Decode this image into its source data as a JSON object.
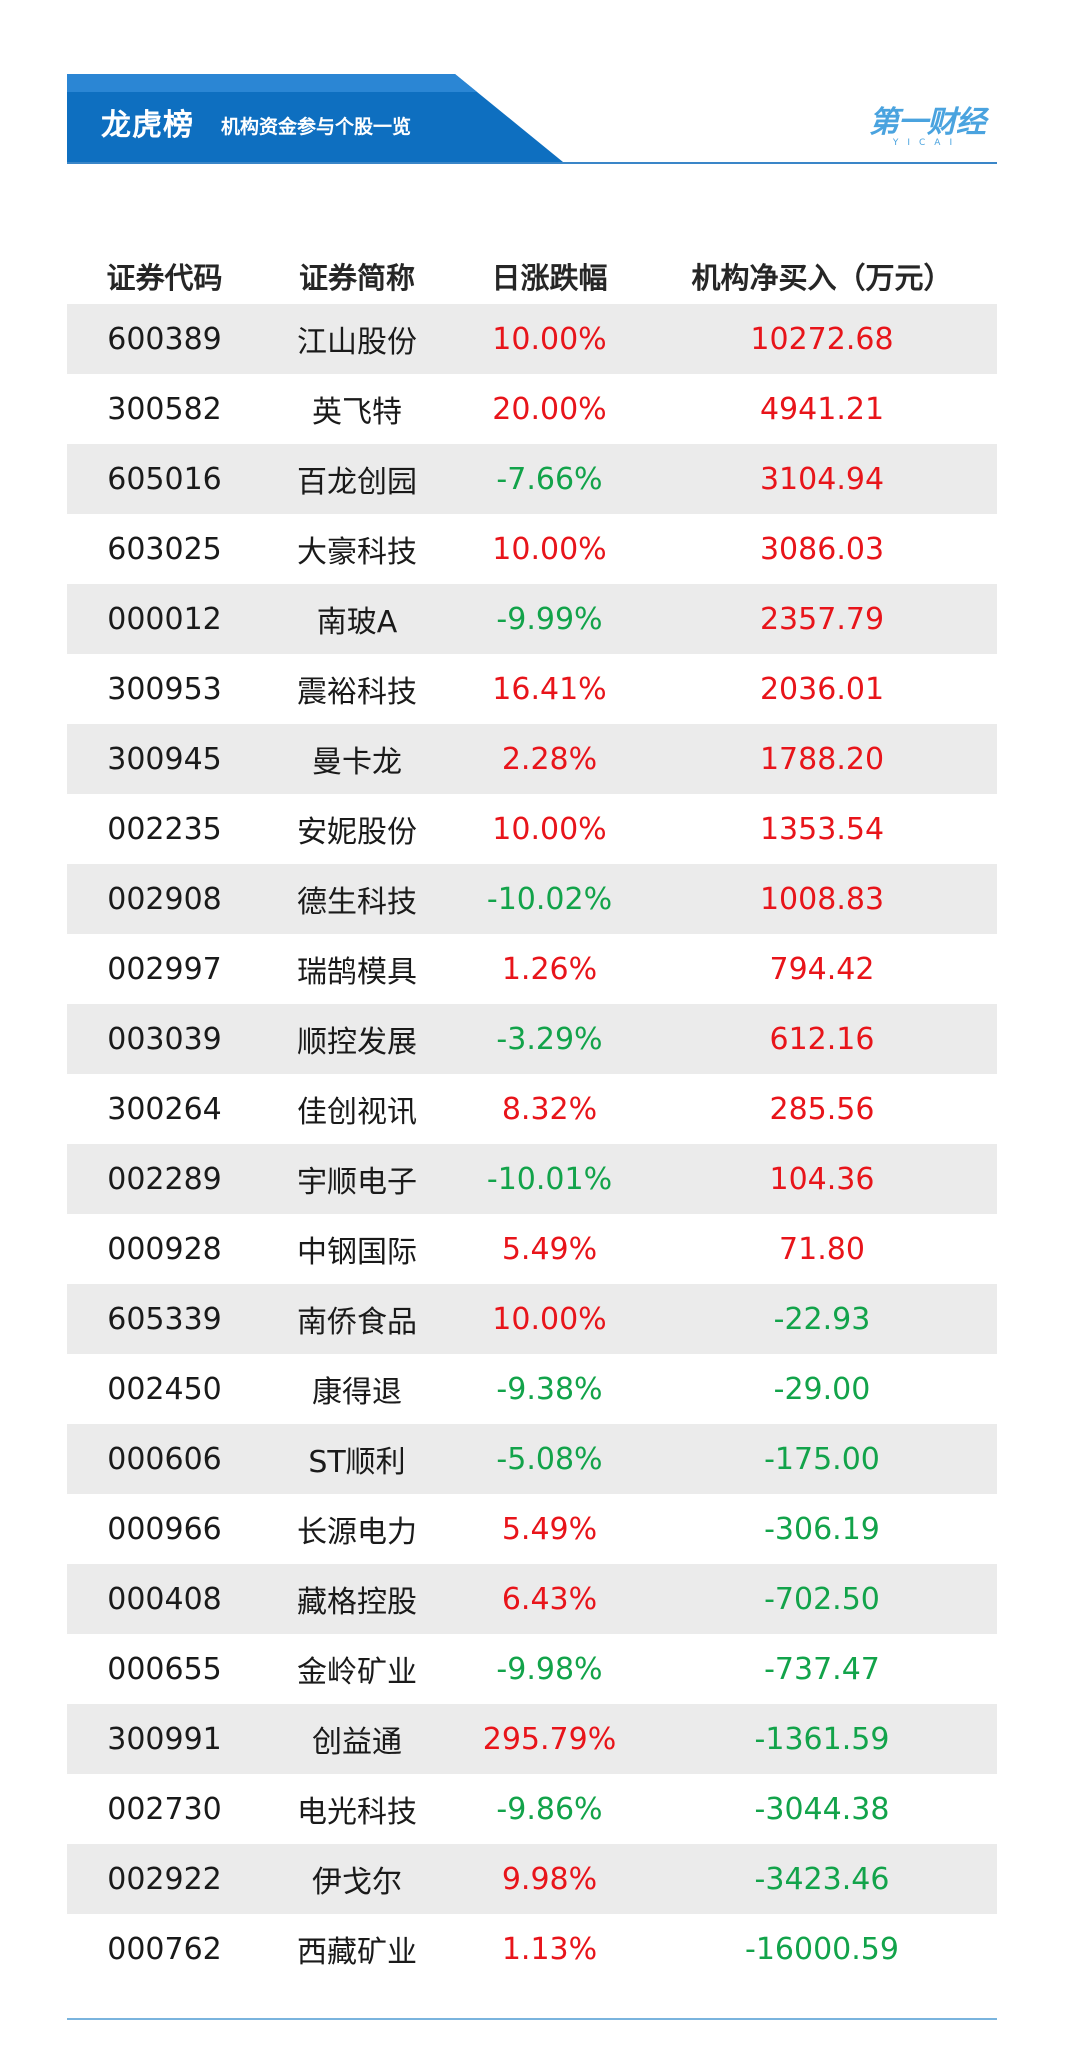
{
  "header": {
    "title": "龙虎榜",
    "subtitle": "机构资金参与个股一览",
    "logo_text": "第一财经",
    "logo_sub": "YICAI",
    "banner_color": "#0e6fc0"
  },
  "table": {
    "columns": [
      "证券代码",
      "证券简称",
      "日涨跌幅",
      "机构净买入（万元）"
    ],
    "rows": [
      {
        "code": "600389",
        "name": "江山股份",
        "change": "10.00%",
        "net_buy": "10272.68"
      },
      {
        "code": "300582",
        "name": "英飞特",
        "change": "20.00%",
        "net_buy": "4941.21"
      },
      {
        "code": "605016",
        "name": "百龙创园",
        "change": "-7.66%",
        "net_buy": "3104.94"
      },
      {
        "code": "603025",
        "name": "大豪科技",
        "change": "10.00%",
        "net_buy": "3086.03"
      },
      {
        "code": "000012",
        "name": "南玻A",
        "change": "-9.99%",
        "net_buy": "2357.79"
      },
      {
        "code": "300953",
        "name": "震裕科技",
        "change": "16.41%",
        "net_buy": "2036.01"
      },
      {
        "code": "300945",
        "name": "曼卡龙",
        "change": "2.28%",
        "net_buy": "1788.20"
      },
      {
        "code": "002235",
        "name": "安妮股份",
        "change": "10.00%",
        "net_buy": "1353.54"
      },
      {
        "code": "002908",
        "name": "德生科技",
        "change": "-10.02%",
        "net_buy": "1008.83"
      },
      {
        "code": "002997",
        "name": "瑞鹄模具",
        "change": "1.26%",
        "net_buy": "794.42"
      },
      {
        "code": "003039",
        "name": "顺控发展",
        "change": "-3.29%",
        "net_buy": "612.16"
      },
      {
        "code": "300264",
        "name": "佳创视讯",
        "change": "8.32%",
        "net_buy": "285.56"
      },
      {
        "code": "002289",
        "name": "宇顺电子",
        "change": "-10.01%",
        "net_buy": "104.36"
      },
      {
        "code": "000928",
        "name": "中钢国际",
        "change": "5.49%",
        "net_buy": "71.80"
      },
      {
        "code": "605339",
        "name": "南侨食品",
        "change": "10.00%",
        "net_buy": "-22.93"
      },
      {
        "code": "002450",
        "name": "康得退",
        "change": "-9.38%",
        "net_buy": "-29.00"
      },
      {
        "code": "000606",
        "name": "ST顺利",
        "change": "-5.08%",
        "net_buy": "-175.00"
      },
      {
        "code": "000966",
        "name": "长源电力",
        "change": "5.49%",
        "net_buy": "-306.19"
      },
      {
        "code": "000408",
        "name": "藏格控股",
        "change": "6.43%",
        "net_buy": "-702.50"
      },
      {
        "code": "000655",
        "name": "金岭矿业",
        "change": "-9.98%",
        "net_buy": "-737.47"
      },
      {
        "code": "300991",
        "name": "创益通",
        "change": "295.79%",
        "net_buy": "-1361.59"
      },
      {
        "code": "002730",
        "name": "电光科技",
        "change": "-9.86%",
        "net_buy": "-3044.38"
      },
      {
        "code": "002922",
        "name": "伊戈尔",
        "change": "9.98%",
        "net_buy": "-3423.46"
      },
      {
        "code": "000762",
        "name": "西藏矿业",
        "change": "1.13%",
        "net_buy": "-16000.59"
      }
    ]
  },
  "colors": {
    "positive": "#e8141a",
    "negative": "#12a34a",
    "row_stripe": "#ebebeb"
  }
}
